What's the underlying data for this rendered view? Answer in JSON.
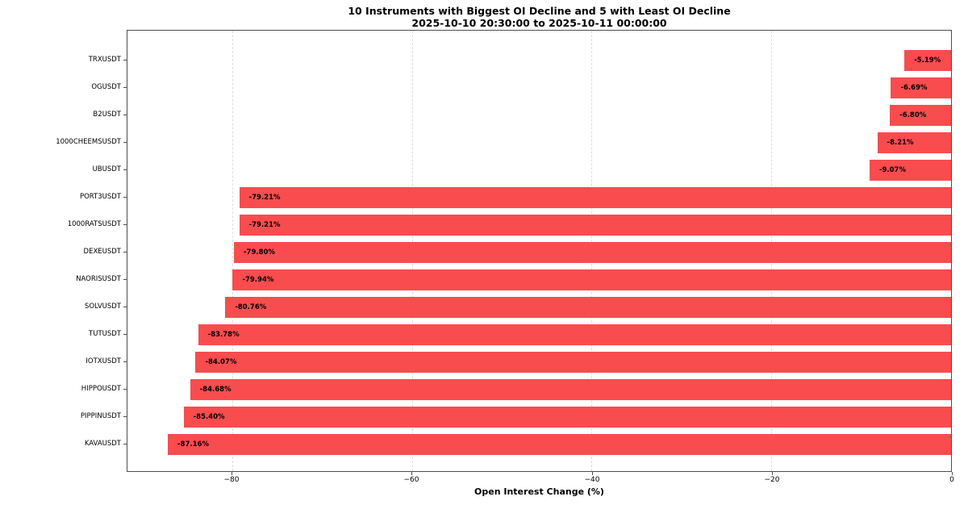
{
  "figure": {
    "background": "#ffffff"
  },
  "chart_data": {
    "type": "bar",
    "orientation": "horizontal",
    "title": "10 Instruments with Biggest OI Decline and 5 with Least OI Decline",
    "subtitle": "2025-10-10 20:30:00 to 2025-10-11 00:00:00",
    "xlabel": "Open Interest Change (%)",
    "xlim": [
      -91.65,
      0
    ],
    "grid": {
      "axis": "x",
      "style": "dashed",
      "color": "#dcdcdc"
    },
    "legend": "none",
    "bar_color": "#f94c4e",
    "spine_color": "#4d4d4d",
    "categories": [
      "TRXUSDT",
      "OGUSDT",
      "B2USDT",
      "1000CHEEMSUSDT",
      "UBUSDT",
      "PORT3USDT",
      "1000RATSUSDT",
      "DEXEUSDT",
      "NAORISUSDT",
      "SOLVUSDT",
      "TUTUSDT",
      "IOTXUSDT",
      "HIPPOUSDT",
      "PIPPINUSDT",
      "KAVAUSDT"
    ],
    "values": [
      -5.19,
      -6.69,
      -6.8,
      -8.21,
      -9.07,
      -79.21,
      -79.21,
      -79.8,
      -79.94,
      -80.76,
      -83.78,
      -84.07,
      -84.68,
      -85.4,
      -87.16
    ],
    "value_labels": [
      "-5.19%",
      "-6.69%",
      "-6.80%",
      "-8.21%",
      "-9.07%",
      "-79.21%",
      "-79.21%",
      "-79.80%",
      "-79.94%",
      "-80.76%",
      "-83.78%",
      "-84.07%",
      "-84.68%",
      "-85.40%",
      "-87.16%"
    ],
    "xticks": [
      {
        "value": -80,
        "label": "−80"
      },
      {
        "value": -60,
        "label": "−60"
      },
      {
        "value": -40,
        "label": "−40"
      },
      {
        "value": -20,
        "label": "−20"
      },
      {
        "value": 0,
        "label": "0"
      }
    ]
  }
}
